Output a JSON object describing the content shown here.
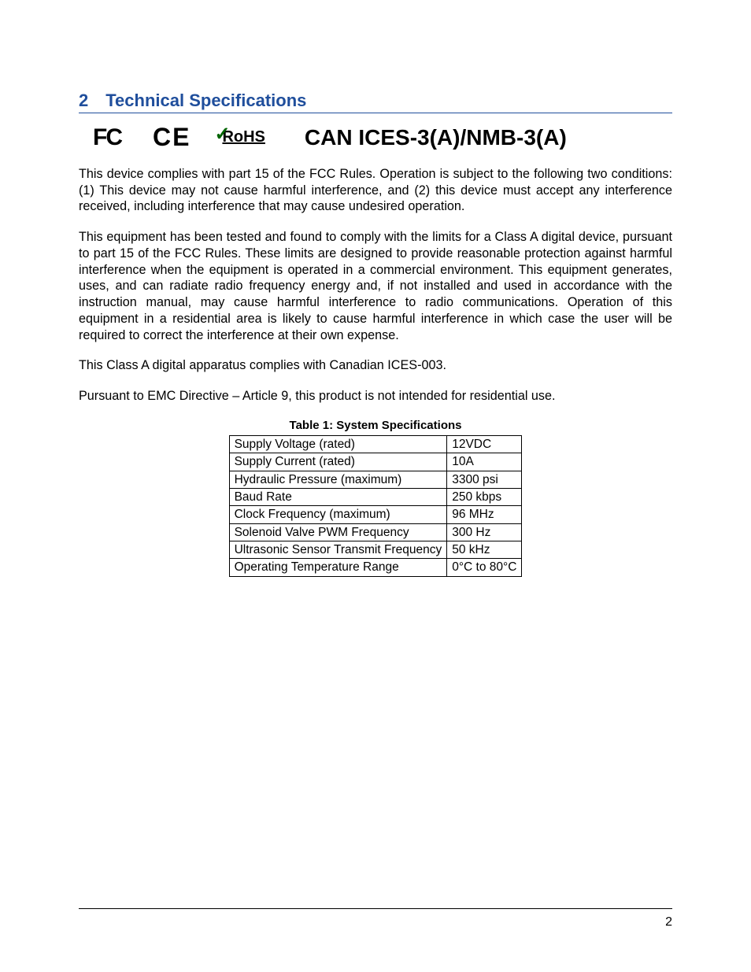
{
  "heading": {
    "number": "2",
    "title": "Technical Specifications",
    "color": "#1f4e9c"
  },
  "logos": {
    "fcc": "FC",
    "ce": "CE",
    "rohs": "RoHS",
    "can_ices": "CAN ICES-3(A)/NMB-3(A)"
  },
  "paragraphs": {
    "p1": "This device complies with part 15 of the FCC Rules. Operation is subject to the following two conditions: (1) This device may not cause harmful interference, and (2) this device must accept any interference received, including interference that may cause undesired operation.",
    "p2": "This equipment has been tested and found to comply with the limits for a Class A digital device, pursuant to part 15 of the FCC Rules. These limits are designed to provide reasonable protection against harmful interference when the equipment is operated in a commercial environment. This equipment generates, uses, and can radiate radio frequency energy and, if not installed and used in accordance with the instruction manual, may cause harmful interference to radio communications. Operation of this equipment in a residential area is likely to cause harmful interference in which case the user will be required to correct the interference at their own expense.",
    "p3": "This Class A digital apparatus complies with Canadian ICES-003.",
    "p4": "Pursuant to EMC Directive – Article 9, this product is not intended for residential use."
  },
  "table": {
    "caption": "Table 1: System Specifications",
    "rows": [
      {
        "label": "Supply Voltage (rated)",
        "value": "12VDC"
      },
      {
        "label": "Supply Current (rated)",
        "value": "10A"
      },
      {
        "label": "Hydraulic Pressure (maximum)",
        "value": "3300 psi"
      },
      {
        "label": "Baud Rate",
        "value": "250 kbps"
      },
      {
        "label": "Clock Frequency (maximum)",
        "value": "96 MHz"
      },
      {
        "label": "Solenoid Valve PWM Frequency",
        "value": "300 Hz"
      },
      {
        "label": "Ultrasonic Sensor Transmit Frequency",
        "value": "50 kHz"
      },
      {
        "label": "Operating Temperature Range",
        "value": "0°C to 80°C"
      }
    ]
  },
  "page_number": "2",
  "colors": {
    "heading": "#1f4e9c",
    "text": "#000000",
    "background": "#ffffff",
    "border": "#000000",
    "rohs_check": "#006400"
  },
  "typography": {
    "heading_fontsize": 22,
    "body_fontsize": 16.2,
    "caption_fontsize": 15,
    "table_fontsize": 15.5,
    "logo_can_fontsize": 28
  }
}
